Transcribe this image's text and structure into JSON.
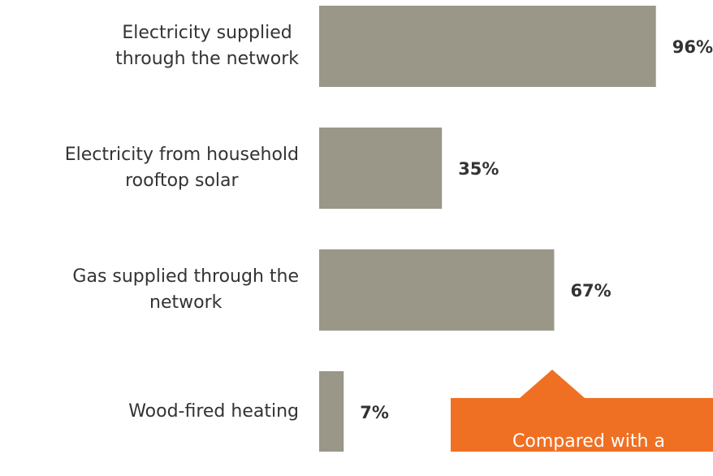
{
  "chart_data": {
    "type": "bar",
    "orientation": "horizontal",
    "categories": [
      "Electricity supplied\nthrough the network",
      "Electricity from household\nrooftop solar",
      "Gas supplied through the\nnetwork",
      "Wood-fired heating"
    ],
    "values": [
      96,
      35,
      67,
      7
    ],
    "value_labels": [
      "96%",
      "35%",
      "67%",
      "7%"
    ],
    "color": "#9a9788",
    "xlim": [
      0,
      100
    ],
    "annotation": "Compared with a\ntelephone survey in",
    "annotation_color": "#f07023"
  }
}
